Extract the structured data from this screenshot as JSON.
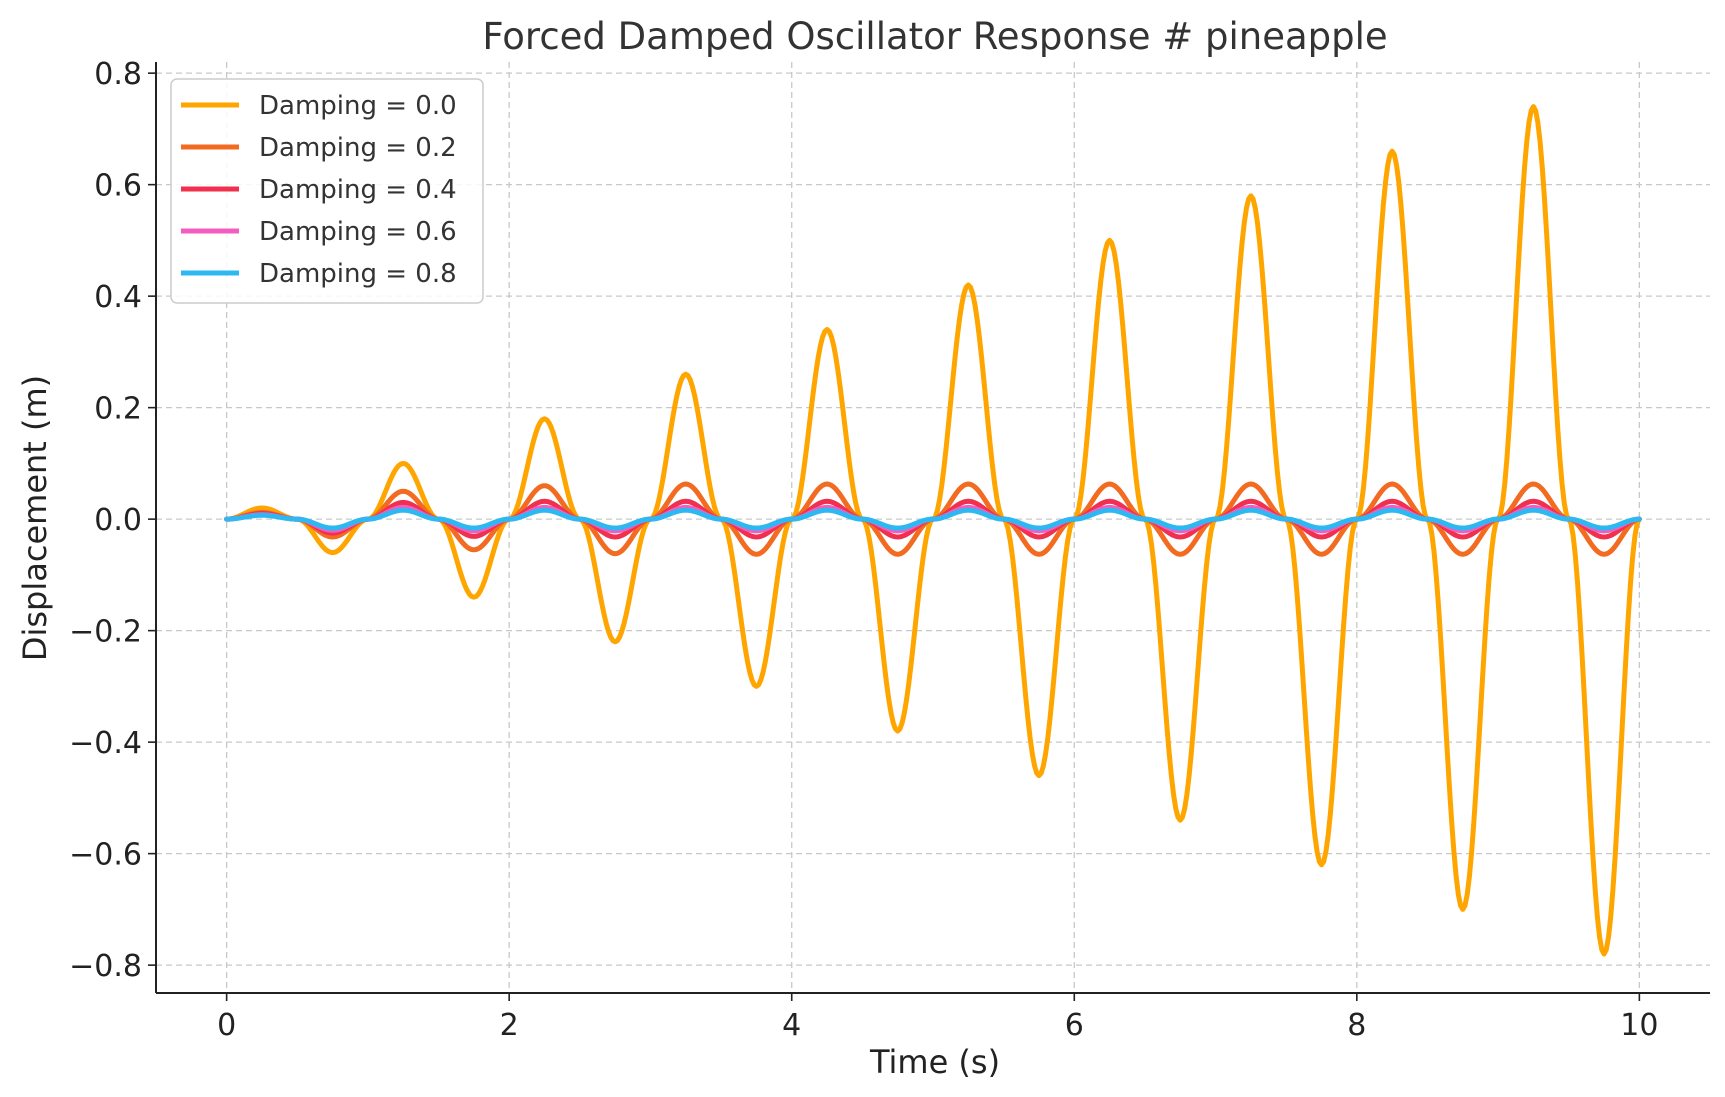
{
  "chart_data": {
    "type": "line",
    "title": "Forced Damped Oscillator Response # pineapple",
    "xlabel": "Time (s)",
    "ylabel": "Displacement (m)",
    "xlim": [
      -0.5,
      10.5
    ],
    "ylim": [
      -0.85,
      0.82
    ],
    "xticks": [
      0,
      2,
      4,
      6,
      8,
      10
    ],
    "xtick_labels": [
      "0",
      "2",
      "4",
      "6",
      "8",
      "10"
    ],
    "yticks": [
      -0.8,
      -0.6,
      -0.4,
      -0.2,
      0.0,
      0.2,
      0.4,
      0.6,
      0.8
    ],
    "ytick_labels": [
      "−0.8",
      "−0.6",
      "−0.4",
      "−0.2",
      "0.0",
      "0.2",
      "0.4",
      "0.6",
      "0.8"
    ],
    "grid": true,
    "legend_position": "upper-left",
    "x": [
      0.0,
      0.25,
      0.5,
      0.75,
      1.0,
      1.25,
      1.5,
      1.75,
      2.0,
      2.25,
      2.5,
      2.75,
      3.0,
      3.25,
      3.5,
      3.75,
      4.0,
      4.25,
      4.5,
      4.75,
      5.0,
      5.25,
      5.5,
      5.75,
      6.0,
      6.25,
      6.5,
      6.75,
      7.0,
      7.25,
      7.5,
      7.75,
      8.0,
      8.25,
      8.5,
      8.75,
      9.0,
      9.25,
      9.5,
      9.75,
      10.0
    ],
    "series": [
      {
        "name": "Damping = 0.0",
        "color": "#FFA500",
        "values": [
          0.0,
          0.02,
          0.0,
          -0.06,
          0.0,
          0.1,
          0.0,
          -0.14,
          0.0,
          0.18,
          0.0,
          -0.22,
          0.0,
          0.26,
          0.0,
          -0.3,
          0.0,
          0.34,
          0.0,
          -0.38,
          0.0,
          0.42,
          0.0,
          -0.46,
          0.0,
          0.5,
          0.0,
          -0.54,
          0.0,
          0.58,
          0.0,
          -0.62,
          0.0,
          0.66,
          0.0,
          -0.7,
          0.0,
          0.74,
          0.0,
          -0.78,
          0.0
        ]
      },
      {
        "name": "Damping = 0.2",
        "color": "#F26B21",
        "values": [
          0.0,
          0.012,
          0.0,
          -0.032,
          0.0,
          0.05,
          0.0,
          -0.055,
          0.0,
          0.06,
          0.0,
          -0.062,
          0.0,
          0.063,
          0.0,
          -0.063,
          0.0,
          0.063,
          0.0,
          -0.063,
          0.0,
          0.063,
          0.0,
          -0.063,
          0.0,
          0.063,
          0.0,
          -0.063,
          0.0,
          0.063,
          0.0,
          -0.063,
          0.0,
          0.063,
          0.0,
          -0.063,
          0.0,
          0.063,
          0.0,
          -0.063,
          0.0
        ]
      },
      {
        "name": "Damping = 0.4",
        "color": "#F0304F",
        "values": [
          0.0,
          0.01,
          0.0,
          -0.025,
          0.0,
          0.03,
          0.0,
          -0.031,
          0.0,
          0.032,
          0.0,
          -0.032,
          0.0,
          0.032,
          0.0,
          -0.032,
          0.0,
          0.032,
          0.0,
          -0.032,
          0.0,
          0.032,
          0.0,
          -0.032,
          0.0,
          0.032,
          0.0,
          -0.032,
          0.0,
          0.032,
          0.0,
          -0.032,
          0.0,
          0.032,
          0.0,
          -0.032,
          0.0,
          0.032,
          0.0,
          -0.032,
          0.0
        ]
      },
      {
        "name": "Damping = 0.6",
        "color": "#F45DC0",
        "values": [
          0.0,
          0.008,
          0.0,
          -0.02,
          0.0,
          0.021,
          0.0,
          -0.021,
          0.0,
          0.021,
          0.0,
          -0.021,
          0.0,
          0.021,
          0.0,
          -0.021,
          0.0,
          0.021,
          0.0,
          -0.021,
          0.0,
          0.021,
          0.0,
          -0.021,
          0.0,
          0.021,
          0.0,
          -0.021,
          0.0,
          0.021,
          0.0,
          -0.021,
          0.0,
          0.021,
          0.0,
          -0.021,
          0.0,
          0.021,
          0.0,
          -0.021,
          0.0
        ]
      },
      {
        "name": "Damping = 0.8",
        "color": "#2EB8F2",
        "values": [
          0.0,
          0.007,
          0.0,
          -0.016,
          0.0,
          0.016,
          0.0,
          -0.016,
          0.0,
          0.016,
          0.0,
          -0.016,
          0.0,
          0.016,
          0.0,
          -0.016,
          0.0,
          0.016,
          0.0,
          -0.016,
          0.0,
          0.016,
          0.0,
          -0.016,
          0.0,
          0.016,
          0.0,
          -0.016,
          0.0,
          0.016,
          0.0,
          -0.016,
          0.0,
          0.016,
          0.0,
          -0.016,
          0.0,
          0.016,
          0.0,
          -0.016,
          0.0
        ]
      }
    ]
  }
}
